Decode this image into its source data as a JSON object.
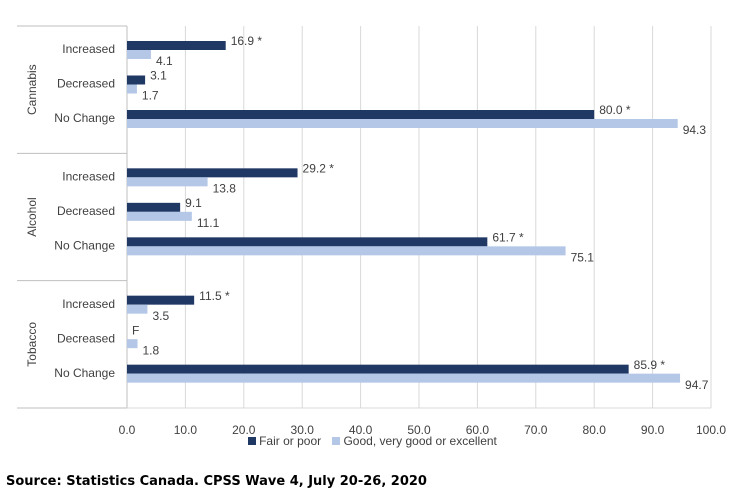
{
  "chart_data": {
    "type": "bar",
    "orientation": "horizontal",
    "groups": [
      {
        "name": "Cannabis",
        "categories": [
          "Increased",
          "Decreased",
          "No Change"
        ]
      },
      {
        "name": "Alcohol",
        "categories": [
          "Increased",
          "Decreased",
          "No Change"
        ]
      },
      {
        "name": "Tobacco",
        "categories": [
          "Increased",
          "Decreased",
          "No Change"
        ]
      }
    ],
    "series": [
      {
        "name": "Fair or poor",
        "color": "#1f3864",
        "values": [
          16.9,
          3.1,
          80.0,
          29.2,
          9.1,
          61.7,
          11.5,
          null,
          85.9
        ],
        "labels": [
          "16.9 *",
          "3.1",
          "80.0 *",
          "29.2 *",
          "9.1",
          "61.7 *",
          "11.5 *",
          "F",
          "85.9 *"
        ]
      },
      {
        "name": "Good, very good or excellent",
        "color": "#b4c7e7",
        "values": [
          4.1,
          1.7,
          94.3,
          13.8,
          11.1,
          75.1,
          3.5,
          1.8,
          94.7
        ],
        "labels": [
          "4.1",
          "1.7",
          "94.3",
          "13.8",
          "11.1",
          "75.1",
          "3.5",
          "1.8",
          "94.7"
        ]
      }
    ],
    "xlim": [
      0,
      100
    ],
    "xticks": [
      "0.0",
      "10.0",
      "20.0",
      "30.0",
      "40.0",
      "50.0",
      "60.0",
      "70.0",
      "80.0",
      "90.0",
      "100.0"
    ],
    "grid": true,
    "legend_position": "bottom"
  },
  "legend": {
    "item1": "Fair or poor",
    "item2": "Good, very good or excellent"
  },
  "source": "Source: Statistics Canada. CPSS Wave 4, July 20-26, 2020"
}
